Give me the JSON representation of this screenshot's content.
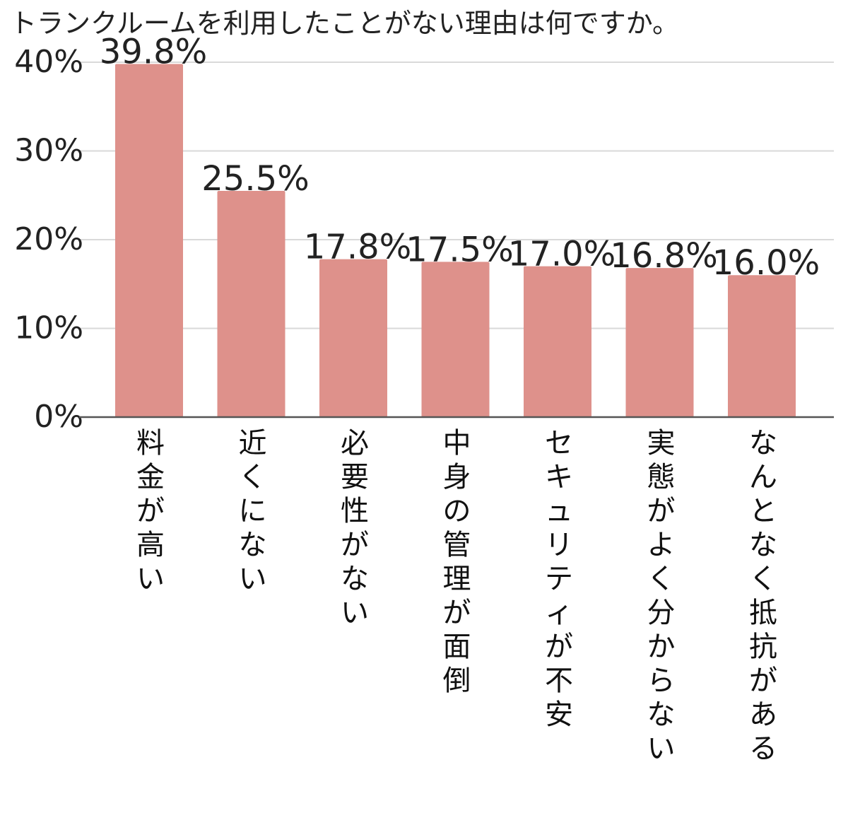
{
  "chart_data": {
    "type": "bar",
    "title": "トランクルームを利用したことがない理由は何ですか。",
    "categories": [
      "料金が高い",
      "近くにない",
      "必要性がない",
      "中身の管理が面倒",
      "セキュリティが不安",
      "実態がよく分からない",
      "なんとなく抵抗がある"
    ],
    "values": [
      39.8,
      25.5,
      17.8,
      17.5,
      17.0,
      16.8,
      16.0
    ],
    "value_labels": [
      "39.8%",
      "25.5%",
      "17.8%",
      "17.5%",
      "17.0%",
      "16.8%",
      "16.0%"
    ],
    "y_ticks": [
      0,
      10,
      20,
      30,
      40
    ],
    "y_tick_labels": [
      "0%",
      "10%",
      "20%",
      "30%",
      "40%"
    ],
    "ylim": [
      0,
      40
    ],
    "grid": true,
    "legend": "none",
    "bar_color": "#de918b",
    "grid_color": "#d9d9d9",
    "axis_color": "#555555"
  }
}
